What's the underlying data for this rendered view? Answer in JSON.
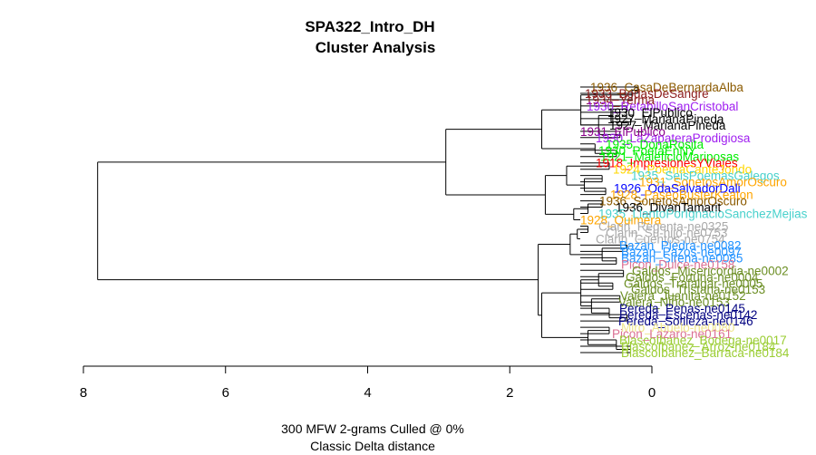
{
  "chart_data": {
    "type": "dendrogram",
    "title": "SPA322_Intro_DH",
    "subtitle": "Cluster Analysis",
    "xlabel_line1": "300 MFW 2-grams Culled @ 0%",
    "xlabel_line2": "Classic Delta distance",
    "xlim": [
      8,
      0
    ],
    "x_ticks": [
      8,
      6,
      4,
      2,
      0
    ],
    "tick_labels": [
      "8",
      "6",
      "4",
      "2",
      "0"
    ],
    "leaves": [
      {
        "label": "1936_CasaDeBernardaAlba",
        "color": "#8B5A00"
      },
      {
        "label": "1933_BodasDeSangre",
        "color": "#8B1A1A"
      },
      {
        "label": "1934_Yerma",
        "color": "#8B1A1A"
      },
      {
        "label": "1930_RetabilloSanCristobal",
        "color": "#A020F0"
      },
      {
        "label": "1930_ElPublico",
        "color": "#000000"
      },
      {
        "label": "1927_MarianaPineda",
        "color": "#000000"
      },
      {
        "label": "1927_MarianaPineda",
        "color": "#000000"
      },
      {
        "label": "1931_ElPublico",
        "color": "#8B008B"
      },
      {
        "label": "1930_LaZapateraProdigiosa",
        "color": "#A020F0"
      },
      {
        "label": "1935_DonaRosita",
        "color": "#00EE00"
      },
      {
        "label": "1930_PoetaEnNY",
        "color": "#00EE00"
      },
      {
        "label": "1921_MaleficioMariposas",
        "color": "#00EE00"
      },
      {
        "label": "1918_ImpresionesYViajes",
        "color": "#FF0000"
      },
      {
        "label": "1924_PoemaCanteJondo",
        "color": "#FFD700"
      },
      {
        "label": "1935_SeisPoemasGalegos",
        "color": "#48D1CC"
      },
      {
        "label": "1931_SonetosAmorOscuro",
        "color": "#FFA500"
      },
      {
        "label": "1926_OdaSalvadorDali",
        "color": "#0000FF"
      },
      {
        "label": "1928_PaseoBusterKeaton",
        "color": "#FFA500"
      },
      {
        "label": "1936_SonetosAmorOscuro",
        "color": "#8B5A00"
      },
      {
        "label": "1936_DivanTamarit",
        "color": "#000000"
      },
      {
        "label": "1935_LlantoPorIgnacioSanchezMejias",
        "color": "#48D1CC"
      },
      {
        "label": "1928_Quimera",
        "color": "#FFA500"
      },
      {
        "label": "Clarin_Regenta-ne0325",
        "color": "#A9A9A9"
      },
      {
        "label": "Clarin_Su-hijo-ne0753",
        "color": "#A9A9A9"
      },
      {
        "label": "Clarin_Cuentos-ne0754",
        "color": "#A9A9A9"
      },
      {
        "label": "Bazan_Piedra-ne0082",
        "color": "#1E90FF"
      },
      {
        "label": "Bazan_Pazos-ne0097",
        "color": "#1E90FF"
      },
      {
        "label": "Bazan_Sirena-ne0085",
        "color": "#1E90FF"
      },
      {
        "label": "Picon_Dulce-ne0158",
        "color": "#DB7093"
      },
      {
        "label": "Galdos_Misericordia-ne0002",
        "color": "#6B8E23"
      },
      {
        "label": "Galdos_Fortuna-ne0004",
        "color": "#6B8E23"
      },
      {
        "label": "Galdos_Trafalgar-ne0005",
        "color": "#6B8E23"
      },
      {
        "label": "Galdos_Tristana-ne0153",
        "color": "#6B8E23"
      },
      {
        "label": "Valera_Juanita-ne0152",
        "color": "#6B8E23"
      },
      {
        "label": "Valera_Nino-ne0153",
        "color": "#6B8E23"
      },
      {
        "label": "Pereda_Penas-ne0145",
        "color": "#000080"
      },
      {
        "label": "Pereda_Escenas-ne0142",
        "color": "#000080"
      },
      {
        "label": "Pereda_Sotileza-ne0146",
        "color": "#000080"
      },
      {
        "label": "Miro_Abuelo-ne0080",
        "color": "#F0E68C"
      },
      {
        "label": "Picon_Lazaro-ne0161",
        "color": "#DB7093"
      },
      {
        "label": "BlascoIbanez_Bodega-ne0017",
        "color": "#9ACD32"
      },
      {
        "label": "BlascoIbanez_Arroz-ne0184",
        "color": "#9ACD32"
      },
      {
        "label": "BlascoIbanez_Barraca-ne0184",
        "color": "#9ACD32"
      }
    ]
  }
}
